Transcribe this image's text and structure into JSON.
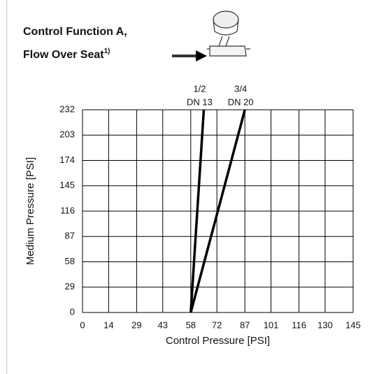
{
  "chart_data": {
    "type": "line",
    "title": [
      "Control Function A,",
      "Flow Over Seat"
    ],
    "title_note": "1)",
    "x_label": "Control Pressure [PSI]",
    "y_label": "Medium Pressure [PSI]",
    "xlim": [
      0,
      145
    ],
    "ylim": [
      0,
      232
    ],
    "xticks": [
      0,
      14,
      29,
      43,
      58,
      72,
      87,
      101,
      116,
      130,
      145
    ],
    "yticks": [
      0,
      29,
      58,
      87,
      116,
      145,
      174,
      203,
      232
    ],
    "grid": true,
    "series": [
      {
        "name": [
          "1/2",
          "DN 13"
        ],
        "color": "#000000",
        "x": [
          58,
          65
        ],
        "y": [
          0,
          232
        ]
      },
      {
        "name": [
          "3/4",
          "DN 20"
        ],
        "color": "#000000",
        "x": [
          58,
          87
        ],
        "y": [
          0,
          232
        ]
      }
    ]
  }
}
